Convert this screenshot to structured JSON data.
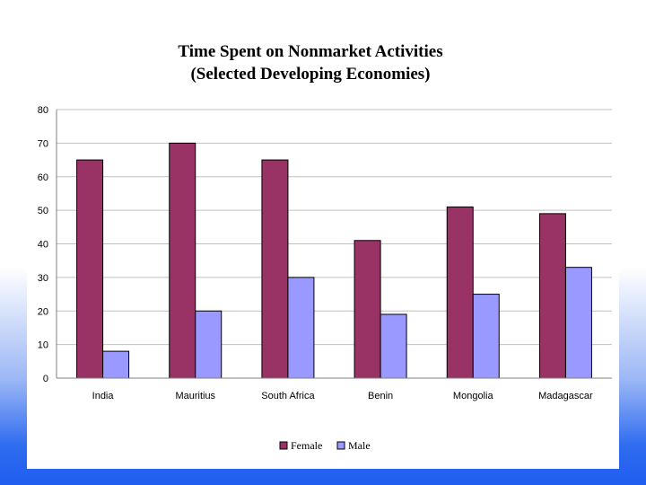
{
  "colors": {
    "female": "#993366",
    "male": "#9999ff",
    "grid": "#c0c0c0",
    "axis": "#808080"
  },
  "chart_data": {
    "type": "bar",
    "title": [
      "Time Spent on Nonmarket Activities",
      "(Selected Developing Economies)"
    ],
    "xlabel": "",
    "ylabel": "",
    "ylim": [
      0,
      80
    ],
    "yticks": [
      0,
      10,
      20,
      30,
      40,
      50,
      60,
      70,
      80
    ],
    "categories": [
      "India",
      "Mauritius",
      "South Africa",
      "Benin",
      "Mongolia",
      "Madagascar"
    ],
    "series": [
      {
        "name": "Female",
        "values": [
          65,
          70,
          65,
          41,
          51,
          49
        ]
      },
      {
        "name": "Male",
        "values": [
          8,
          20,
          30,
          19,
          25,
          33
        ]
      }
    ],
    "legend": "bottom-center",
    "grid": true
  }
}
